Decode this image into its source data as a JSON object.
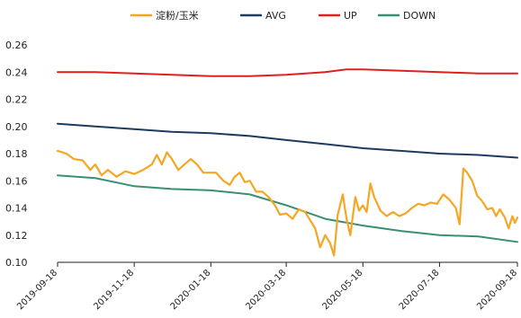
{
  "chart_data": {
    "type": "line",
    "legend_position": "top",
    "grid": false,
    "xlim": [
      "2019-09-18",
      "2020-09-18"
    ],
    "ylim": [
      0.1,
      0.26
    ],
    "y_ticks": [
      "0.10",
      "0.12",
      "0.14",
      "0.16",
      "0.18",
      "0.20",
      "0.22",
      "0.24",
      "0.26"
    ],
    "x_ticks": [
      "2019-09-18",
      "2019-11-18",
      "2020-01-18",
      "2020-03-18",
      "2020-05-18",
      "2020-07-18",
      "2020-09-18"
    ],
    "series": [
      {
        "name": "淀粉/玉米",
        "color": "#F5A623",
        "points": [
          [
            "2019-09-18",
            0.182
          ],
          [
            "2019-09-25",
            0.18
          ],
          [
            "2019-10-01",
            0.176
          ],
          [
            "2019-10-08",
            0.175
          ],
          [
            "2019-10-14",
            0.168
          ],
          [
            "2019-10-18",
            0.172
          ],
          [
            "2019-10-23",
            0.164
          ],
          [
            "2019-10-28",
            0.168
          ],
          [
            "2019-11-04",
            0.163
          ],
          [
            "2019-11-11",
            0.167
          ],
          [
            "2019-11-18",
            0.165
          ],
          [
            "2019-11-25",
            0.168
          ],
          [
            "2019-12-02",
            0.172
          ],
          [
            "2019-12-06",
            0.179
          ],
          [
            "2019-12-10",
            0.172
          ],
          [
            "2019-12-14",
            0.181
          ],
          [
            "2019-12-18",
            0.176
          ],
          [
            "2019-12-23",
            0.168
          ],
          [
            "2019-12-28",
            0.172
          ],
          [
            "2020-01-02",
            0.176
          ],
          [
            "2020-01-07",
            0.172
          ],
          [
            "2020-01-12",
            0.166
          ],
          [
            "2020-01-17",
            0.166
          ],
          [
            "2020-01-22",
            0.166
          ],
          [
            "2020-01-28",
            0.16
          ],
          [
            "2020-02-02",
            0.157
          ],
          [
            "2020-02-06",
            0.163
          ],
          [
            "2020-02-10",
            0.166
          ],
          [
            "2020-02-14",
            0.159
          ],
          [
            "2020-02-18",
            0.16
          ],
          [
            "2020-02-23",
            0.152
          ],
          [
            "2020-02-28",
            0.152
          ],
          [
            "2020-03-04",
            0.148
          ],
          [
            "2020-03-09",
            0.142
          ],
          [
            "2020-03-13",
            0.135
          ],
          [
            "2020-03-18",
            0.136
          ],
          [
            "2020-03-23",
            0.132
          ],
          [
            "2020-03-28",
            0.139
          ],
          [
            "2020-04-02",
            0.137
          ],
          [
            "2020-04-06",
            0.131
          ],
          [
            "2020-04-10",
            0.125
          ],
          [
            "2020-04-14",
            0.111
          ],
          [
            "2020-04-18",
            0.12
          ],
          [
            "2020-04-22",
            0.114
          ],
          [
            "2020-04-25",
            0.105
          ],
          [
            "2020-04-28",
            0.135
          ],
          [
            "2020-05-02",
            0.15
          ],
          [
            "2020-05-05",
            0.132
          ],
          [
            "2020-05-08",
            0.12
          ],
          [
            "2020-05-12",
            0.148
          ],
          [
            "2020-05-15",
            0.138
          ],
          [
            "2020-05-18",
            0.142
          ],
          [
            "2020-05-21",
            0.137
          ],
          [
            "2020-05-24",
            0.158
          ],
          [
            "2020-05-27",
            0.148
          ],
          [
            "2020-06-01",
            0.138
          ],
          [
            "2020-06-06",
            0.134
          ],
          [
            "2020-06-11",
            0.137
          ],
          [
            "2020-06-16",
            0.134
          ],
          [
            "2020-06-21",
            0.136
          ],
          [
            "2020-06-26",
            0.14
          ],
          [
            "2020-07-01",
            0.143
          ],
          [
            "2020-07-06",
            0.142
          ],
          [
            "2020-07-11",
            0.144
          ],
          [
            "2020-07-16",
            0.143
          ],
          [
            "2020-07-21",
            0.15
          ],
          [
            "2020-07-26",
            0.146
          ],
          [
            "2020-07-31",
            0.14
          ],
          [
            "2020-08-03",
            0.128
          ],
          [
            "2020-08-06",
            0.169
          ],
          [
            "2020-08-09",
            0.166
          ],
          [
            "2020-08-13",
            0.16
          ],
          [
            "2020-08-17",
            0.149
          ],
          [
            "2020-08-21",
            0.145
          ],
          [
            "2020-08-25",
            0.139
          ],
          [
            "2020-08-29",
            0.14
          ],
          [
            "2020-09-01",
            0.134
          ],
          [
            "2020-09-04",
            0.139
          ],
          [
            "2020-09-08",
            0.133
          ],
          [
            "2020-09-11",
            0.125
          ],
          [
            "2020-09-14",
            0.134
          ],
          [
            "2020-09-16",
            0.129
          ],
          [
            "2020-09-18",
            0.133
          ]
        ]
      },
      {
        "name": "AVG",
        "color": "#1F3A5F",
        "points": [
          [
            "2019-09-18",
            0.202
          ],
          [
            "2019-10-18",
            0.2
          ],
          [
            "2019-11-18",
            0.198
          ],
          [
            "2019-12-18",
            0.196
          ],
          [
            "2020-01-18",
            0.195
          ],
          [
            "2020-02-18",
            0.193
          ],
          [
            "2020-03-18",
            0.19
          ],
          [
            "2020-04-18",
            0.187
          ],
          [
            "2020-05-18",
            0.184
          ],
          [
            "2020-06-18",
            0.182
          ],
          [
            "2020-07-18",
            0.18
          ],
          [
            "2020-08-18",
            0.179
          ],
          [
            "2020-09-18",
            0.177
          ]
        ]
      },
      {
        "name": "UP",
        "color": "#E02020",
        "points": [
          [
            "2019-09-18",
            0.24
          ],
          [
            "2019-10-18",
            0.24
          ],
          [
            "2019-11-18",
            0.239
          ],
          [
            "2019-12-18",
            0.238
          ],
          [
            "2020-01-18",
            0.237
          ],
          [
            "2020-02-18",
            0.237
          ],
          [
            "2020-03-18",
            0.238
          ],
          [
            "2020-04-18",
            0.24
          ],
          [
            "2020-05-05",
            0.242
          ],
          [
            "2020-05-18",
            0.242
          ],
          [
            "2020-06-18",
            0.241
          ],
          [
            "2020-07-18",
            0.24
          ],
          [
            "2020-08-18",
            0.239
          ],
          [
            "2020-09-18",
            0.239
          ]
        ]
      },
      {
        "name": "DOWN",
        "color": "#3A8F73",
        "points": [
          [
            "2019-09-18",
            0.164
          ],
          [
            "2019-10-18",
            0.162
          ],
          [
            "2019-11-18",
            0.156
          ],
          [
            "2019-12-18",
            0.154
          ],
          [
            "2020-01-18",
            0.153
          ],
          [
            "2020-02-18",
            0.15
          ],
          [
            "2020-03-18",
            0.142
          ],
          [
            "2020-04-18",
            0.132
          ],
          [
            "2020-05-18",
            0.127
          ],
          [
            "2020-06-18",
            0.123
          ],
          [
            "2020-07-18",
            0.12
          ],
          [
            "2020-08-18",
            0.119
          ],
          [
            "2020-09-18",
            0.115
          ]
        ]
      }
    ]
  }
}
